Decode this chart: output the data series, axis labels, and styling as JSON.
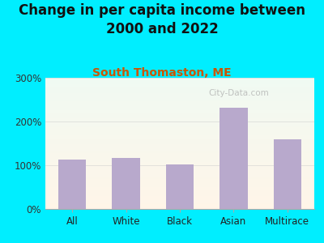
{
  "title": "Change in per capita income between\n2000 and 2022",
  "subtitle": "South Thomaston, ME",
  "categories": [
    "All",
    "White",
    "Black",
    "Asian",
    "Multirace"
  ],
  "values": [
    113,
    116,
    101,
    232,
    160
  ],
  "bar_color": "#b8a9cc",
  "title_fontsize": 12,
  "subtitle_fontsize": 10,
  "subtitle_color": "#cc5500",
  "background_outer": "#00eeff",
  "ylim": [
    0,
    300
  ],
  "yticks": [
    0,
    100,
    200,
    300
  ],
  "ytick_labels": [
    "0%",
    "100%",
    "200%",
    "300%"
  ],
  "watermark": "City-Data.com"
}
